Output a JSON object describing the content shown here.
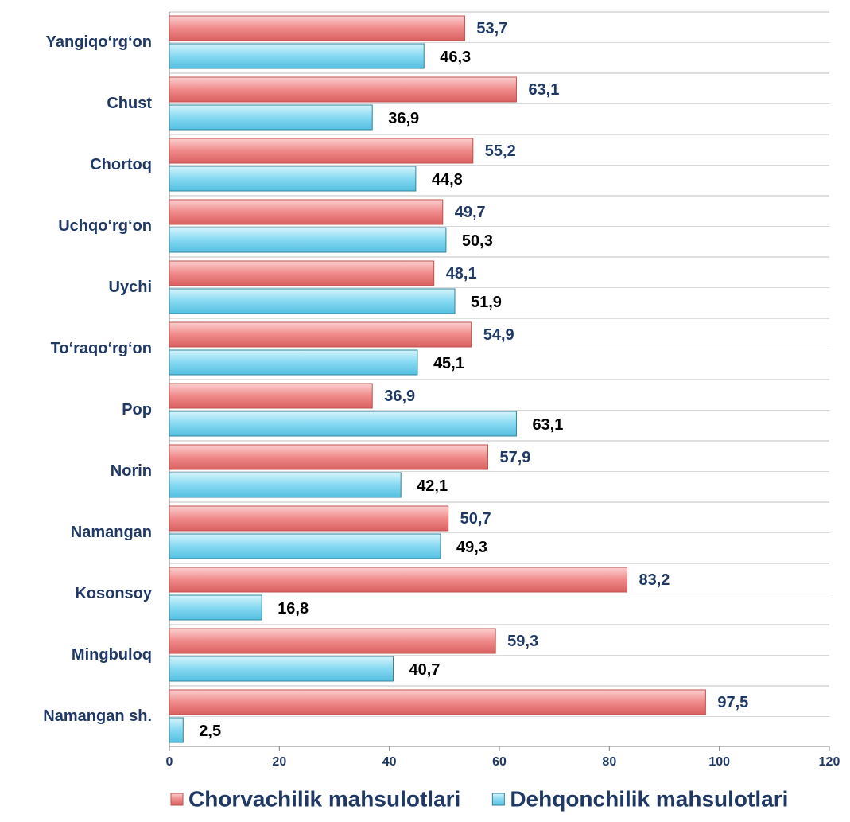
{
  "chart_data": {
    "type": "hbar",
    "categories": [
      "Yangiqo‘rg‘on",
      "Chust",
      "Chortoq",
      "Uchqo‘rg‘on",
      "Uychi",
      "To‘raqo‘rg‘on",
      "Pop",
      "Norin",
      "Namangan",
      "Kosonsoy",
      "Mingbuloq",
      "Namangan sh."
    ],
    "series": [
      {
        "name": "Chorvachilik mahsulotlari",
        "color": "#f08a8a",
        "values": [
          53.7,
          63.1,
          55.2,
          49.7,
          48.1,
          54.9,
          36.9,
          57.9,
          50.7,
          83.2,
          59.3,
          97.5
        ],
        "value_labels": [
          "53,7",
          "63,1",
          "55,2",
          "49,7",
          "48,1",
          "54,9",
          "36,9",
          "57,9",
          "50,7",
          "83,2",
          "59,3",
          "97,5"
        ]
      },
      {
        "name": "Dehqonchilik mahsulotlari",
        "color": "#86d9f2",
        "values": [
          46.3,
          36.9,
          44.8,
          50.3,
          51.9,
          45.1,
          63.1,
          42.1,
          49.3,
          16.8,
          40.7,
          2.5
        ],
        "value_labels": [
          "46,3",
          "36,9",
          "44,8",
          "50,3",
          "51,9",
          "45,1",
          "63,1",
          "42,1",
          "49,3",
          "16,8",
          "40,7",
          "2,5"
        ]
      }
    ],
    "xlim": [
      0,
      120
    ],
    "xticks": [
      0,
      20,
      40,
      60,
      80,
      100,
      120
    ],
    "legend": "bottom"
  }
}
